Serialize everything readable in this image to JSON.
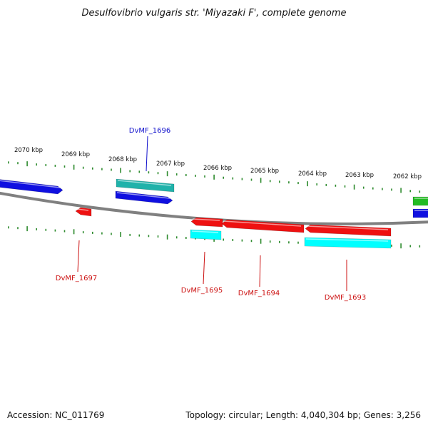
{
  "title": "Desulfovibrio vulgaris str. 'Miyazaki F', complete genome",
  "footer": {
    "accession": "Accession: NC_011769",
    "summary": "Topology: circular; Length: 4,040,304 bp; Genes: 3,256"
  },
  "colors": {
    "backbone": "#808080",
    "tick": "#2e8b2e",
    "blue": "#1010e0",
    "red": "#ee1111",
    "teal": "#20b2aa",
    "cyan": "#00ffff",
    "green": "#22bb22",
    "label_blue": "#1010cc",
    "label_red": "#cc1111"
  },
  "tick_labels": [
    {
      "text": "2070 kbp",
      "kbp": 2070
    },
    {
      "text": "2069 kbp",
      "kbp": 2069
    },
    {
      "text": "2068 kbp",
      "kbp": 2068
    },
    {
      "text": "2067 kbp",
      "kbp": 2067
    },
    {
      "text": "2066 kbp",
      "kbp": 2066
    },
    {
      "text": "2065 kbp",
      "kbp": 2065
    },
    {
      "text": "2064 kbp",
      "kbp": 2064
    },
    {
      "text": "2063 kbp",
      "kbp": 2063
    },
    {
      "text": "2062 kbp",
      "kbp": 2062
    }
  ],
  "gene_labels": [
    {
      "text": "DvMF_1696",
      "color": "label_blue"
    },
    {
      "text": "DvMF_1697",
      "color": "label_red"
    },
    {
      "text": "DvMF_1695",
      "color": "label_red"
    },
    {
      "text": "DvMF_1694",
      "color": "label_red"
    },
    {
      "text": "DvMF_1693",
      "color": "label_red"
    }
  ]
}
